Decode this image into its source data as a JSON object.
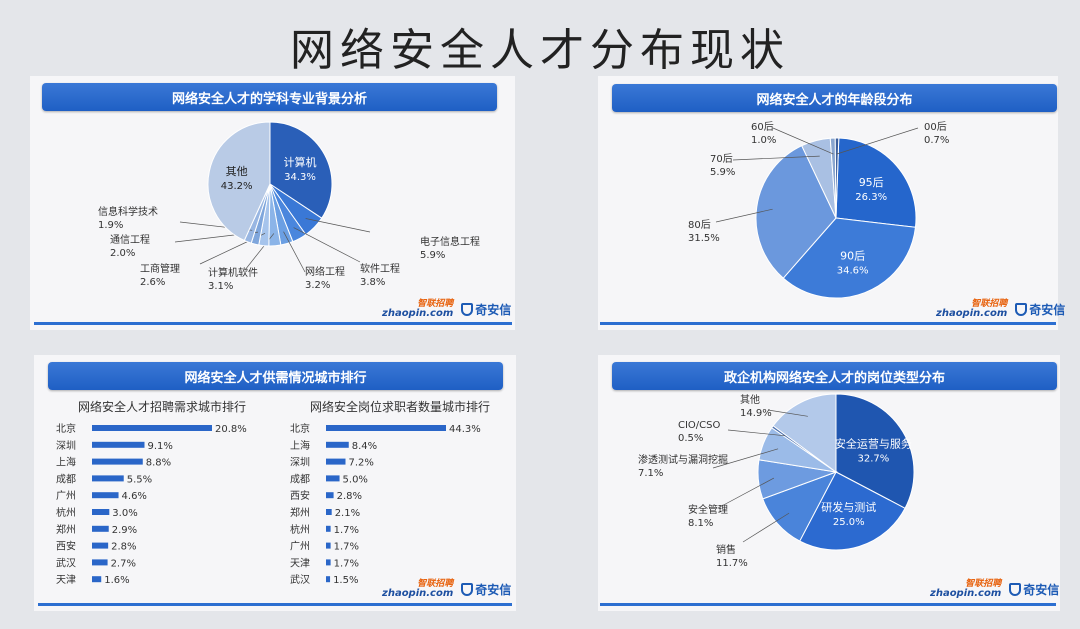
{
  "title": "网络安全人才分布现状",
  "logos": {
    "zhaopin_top": "智联招聘",
    "zhaopin": "zhaopin.com",
    "qianxin": "奇安信"
  },
  "chart_data": [
    {
      "type": "pie",
      "title": "网络安全人才的学科专业背景分析",
      "slices": [
        {
          "label": "计算机",
          "value": 34.3,
          "pct": "34.3%",
          "color": "#2a5fb8"
        },
        {
          "label": "电子信息工程",
          "value": 5.9,
          "pct": "5.9%",
          "color": "#3a78d6"
        },
        {
          "label": "软件工程",
          "value": 3.8,
          "pct": "3.8%",
          "color": "#4a86dd"
        },
        {
          "label": "网络工程",
          "value": 3.2,
          "pct": "3.2%",
          "color": "#6b9fe3"
        },
        {
          "label": "计算机软件",
          "value": 3.1,
          "pct": "3.1%",
          "color": "#8bb4e8"
        },
        {
          "label": "工商管理",
          "value": 2.6,
          "pct": "2.6%",
          "color": "#a6c4ec"
        },
        {
          "label": "通信工程",
          "value": 2.0,
          "pct": "2.0%",
          "color": "#7fa6dc"
        },
        {
          "label": "信息科学技术",
          "value": 1.9,
          "pct": "1.9%",
          "color": "#98b6e2"
        },
        {
          "label": "其他",
          "value": 43.2,
          "pct": "43.2%",
          "color": "#b9cbe6"
        }
      ]
    },
    {
      "type": "pie",
      "title": "网络安全人才的年龄段分布",
      "slices": [
        {
          "label": "95后",
          "value": 26.3,
          "pct": "26.3%",
          "color": "#2566cc"
        },
        {
          "label": "90后",
          "value": 34.6,
          "pct": "34.6%",
          "color": "#3d7bd8"
        },
        {
          "label": "80后",
          "value": 31.5,
          "pct": "31.5%",
          "color": "#6b98dd"
        },
        {
          "label": "70后",
          "value": 5.9,
          "pct": "5.9%",
          "color": "#a9c0e3"
        },
        {
          "label": "60后",
          "value": 1.0,
          "pct": "1.0%",
          "color": "#8aa6cf"
        },
        {
          "label": "00后",
          "value": 0.7,
          "pct": "0.7%",
          "color": "#3c5f9c"
        }
      ]
    },
    {
      "type": "bar",
      "title": "网络安全人才供需情况城市排行",
      "subtitle": "网络安全人才招聘需求城市排行",
      "categories": [
        "北京",
        "深圳",
        "上海",
        "成都",
        "广州",
        "杭州",
        "郑州",
        "西安",
        "武汉",
        "天津"
      ],
      "values": [
        20.8,
        9.1,
        8.8,
        5.5,
        4.6,
        3.0,
        2.9,
        2.8,
        2.7,
        1.6
      ],
      "labels": [
        "20.8%",
        "9.1%",
        "8.8%",
        "5.5%",
        "4.6%",
        "3.0%",
        "2.9%",
        "2.8%",
        "2.7%",
        "1.6%"
      ]
    },
    {
      "type": "bar",
      "subtitle": "网络安全岗位求职者数量城市排行",
      "categories": [
        "北京",
        "上海",
        "深圳",
        "成都",
        "西安",
        "郑州",
        "杭州",
        "广州",
        "天津",
        "武汉"
      ],
      "values": [
        44.3,
        8.4,
        7.2,
        5.0,
        2.8,
        2.1,
        1.7,
        1.7,
        1.7,
        1.5
      ],
      "labels": [
        "44.3%",
        "8.4%",
        "7.2%",
        "5.0%",
        "2.8%",
        "2.1%",
        "1.7%",
        "1.7%",
        "1.7%",
        "1.5%"
      ]
    },
    {
      "type": "pie",
      "title": "政企机构网络安全人才的岗位类型分布",
      "slices": [
        {
          "label": "安全运营与服务",
          "value": 32.7,
          "pct": "32.7%",
          "color": "#1f56b0"
        },
        {
          "label": "研发与测试",
          "value": 25.0,
          "pct": "25.0%",
          "color": "#2c6ad0"
        },
        {
          "label": "销售",
          "value": 11.7,
          "pct": "11.7%",
          "color": "#4a84da"
        },
        {
          "label": "安全管理",
          "value": 8.1,
          "pct": "8.1%",
          "color": "#6d9be0"
        },
        {
          "label": "渗透测试与漏洞挖掘",
          "value": 7.1,
          "pct": "7.1%",
          "color": "#9bbbe8"
        },
        {
          "label": "CIO/CSO",
          "value": 0.5,
          "pct": "0.5%",
          "color": "#4a6fae"
        },
        {
          "label": "其他",
          "value": 14.9,
          "pct": "14.9%",
          "color": "#b3c9ea"
        }
      ]
    }
  ]
}
